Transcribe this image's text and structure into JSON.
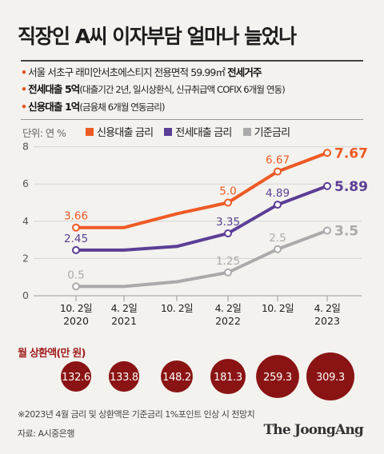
{
  "title": "직장인 A씨 이자부담 얼마나 늘었나",
  "info": {
    "line1_text": "서울 서초구 래미안서초에스티지 전용면적 59.99㎡ ",
    "line1_bold": "전세거주",
    "line2_bold": "전세대출 5억",
    "line2_text": "(대출기간 2년, 일시상환식, 신규취급액 COFIX 6개월 연동)",
    "line3_bold": "신용대출 1억",
    "line3_text": "(금융채 6개월 연동금리)",
    "bullet": "•"
  },
  "unit_label": "단위: 연 %",
  "payment_label": "월 상환액(만 원)",
  "footnote": "※2023년 4월 금리 및 상환액은 기준금리 1%포인트 인상 시 전망치",
  "source": "자료: A시중은행",
  "brand": "The JoongAng",
  "chart_data": {
    "type": "line",
    "categories": [
      [
        "10. 2일",
        "2020"
      ],
      [
        "4. 2일",
        "2021"
      ],
      [
        "10. 2일",
        ""
      ],
      [
        "4. 2일",
        "2022"
      ],
      [
        "10. 2일",
        ""
      ],
      [
        "4. 2일",
        "2023"
      ]
    ],
    "yticks": [
      0,
      2,
      4,
      6,
      8
    ],
    "ylim": [
      0,
      8
    ],
    "series": [
      {
        "name": "신용대출 금리",
        "color": "#ee5a24",
        "values": [
          3.66,
          3.66,
          4.4,
          5.0,
          6.67,
          7.67
        ],
        "labels": [
          "3.66",
          "",
          "",
          "5.0",
          "6.67",
          "7.67"
        ]
      },
      {
        "name": "전세대출 금리",
        "color": "#5b3e96",
        "values": [
          2.45,
          2.45,
          2.65,
          3.35,
          4.89,
          5.89
        ],
        "labels": [
          "2.45",
          "",
          "",
          "3.35",
          "4.89",
          "5.89"
        ]
      },
      {
        "name": "기준금리",
        "color": "#aaaaaa",
        "values": [
          0.5,
          0.5,
          0.75,
          1.25,
          2.5,
          3.5
        ],
        "labels": [
          "0.5",
          "",
          "",
          "1.25",
          "2.5",
          "3.5"
        ]
      }
    ],
    "payments": [
      132.6,
      133.8,
      148.2,
      181.3,
      259.3,
      309.3
    ],
    "payment_color": "#8a1313"
  }
}
